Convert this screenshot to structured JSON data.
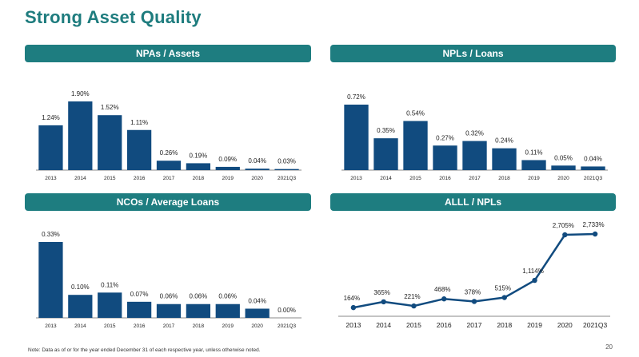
{
  "page": {
    "title": "Strong Asset Quality",
    "footnote": "Note: Data as of or for the year ended December 31 of each respective year, unless otherwise noted.",
    "page_number": "20"
  },
  "colors": {
    "header_bg": "#1e7d80",
    "title": "#1e7c7e",
    "bar": "#114b7f",
    "line": "#114b7f",
    "axis": "#888888"
  },
  "chart_data": [
    {
      "id": "npas-assets",
      "type": "bar",
      "title": "NPAs / Assets",
      "categories": [
        "2013",
        "2014",
        "2015",
        "2016",
        "2017",
        "2018",
        "2019",
        "2020",
        "2021Q3"
      ],
      "values": [
        1.24,
        1.9,
        1.52,
        1.11,
        0.26,
        0.19,
        0.09,
        0.04,
        0.03
      ],
      "labels": [
        "1.24%",
        "1.90%",
        "1.52%",
        "1.11%",
        "0.26%",
        "0.19%",
        "0.09%",
        "0.04%",
        "0.03%"
      ],
      "ylim": [
        0,
        1.9
      ]
    },
    {
      "id": "npls-loans",
      "type": "bar",
      "title": "NPLs / Loans",
      "categories": [
        "2013",
        "2014",
        "2015",
        "2016",
        "2017",
        "2018",
        "2019",
        "2020",
        "2021Q3"
      ],
      "values": [
        0.72,
        0.35,
        0.54,
        0.27,
        0.32,
        0.24,
        0.11,
        0.05,
        0.04
      ],
      "labels": [
        "0.72%",
        "0.35%",
        "0.54%",
        "0.27%",
        "0.32%",
        "0.24%",
        "0.11%",
        "0.05%",
        "0.04%"
      ],
      "ylim": [
        0,
        0.72
      ]
    },
    {
      "id": "ncos-average-loans",
      "type": "bar",
      "title": "NCOs / Average Loans",
      "categories": [
        "2013",
        "2014",
        "2015",
        "2016",
        "2017",
        "2018",
        "2019",
        "2020",
        "2021Q3"
      ],
      "values": [
        0.33,
        0.1,
        0.11,
        0.07,
        0.06,
        0.06,
        0.06,
        0.04,
        0.0
      ],
      "labels": [
        "0.33%",
        "0.10%",
        "0.11%",
        "0.07%",
        "0.06%",
        "0.06%",
        "0.06%",
        "0.04%",
        "0.00%"
      ],
      "ylim": [
        0,
        0.33
      ]
    },
    {
      "id": "alll-npls",
      "type": "line",
      "title": "ALLL / NPLs",
      "categories": [
        "2013",
        "2014",
        "2015",
        "2016",
        "2017",
        "2018",
        "2019",
        "2020",
        "2021Q3"
      ],
      "values": [
        164,
        365,
        221,
        468,
        378,
        515,
        1114,
        2705,
        2733
      ],
      "labels": [
        "164%",
        "365%",
        "221%",
        "468%",
        "378%",
        "515%",
        "1,114%",
        "2,705%",
        "2,733%"
      ],
      "ylim": [
        0,
        2733
      ]
    }
  ]
}
